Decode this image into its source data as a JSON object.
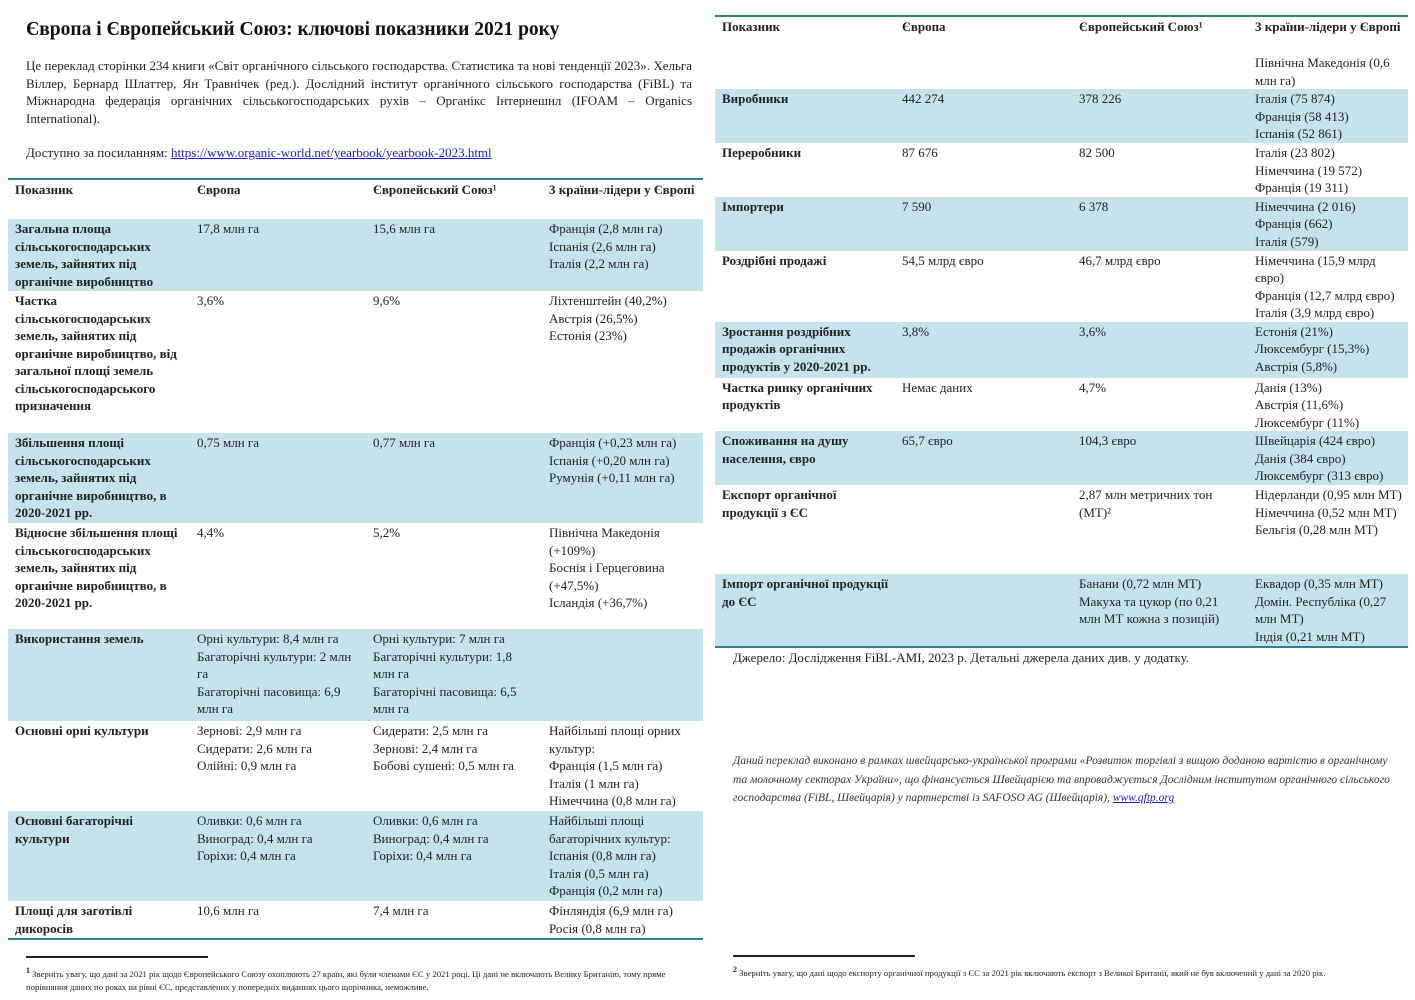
{
  "title": "Європа і Європейський Союз: ключові показники 2021 року",
  "intro": "Це переклад сторінки 234 книги «Світ органічного сільського господарства. Статистика та нові тенденції 2023». Хельга Віллер, Бернард Шлаттер, Ян Травнічек (ред.). Дослідний інститут органічного сільського господарства (FiBL) та Міжнародна федерація органічних сільськогосподарських рухів – Органікс Інтернешнл (IFOAM – Organics International).",
  "available_label": "Доступно за посиланням:",
  "available_link": "https://www.organic-world.net/yearbook/yearbook-2023.html",
  "headers": [
    "Показник",
    "Європа",
    "Європейський Союз¹",
    "3 країни-лідери у Європі"
  ],
  "left_rows": [
    {
      "c": [
        [
          "Загальна площа сільськогосподарських земель, зайнятих під органічне виробництво"
        ],
        [
          "17,8 млн га"
        ],
        [
          "15,6 млн га"
        ],
        [
          "Франція (2,8 млн га)",
          "Іспанія (2,6 млн га)",
          "Італія (2,2 млн га)"
        ]
      ]
    },
    {
      "c": [
        [
          "Частка сільськогосподарських земель, зайнятих під органічне виробництво, від загальної площі земель сільськогосподарського призначення"
        ],
        [
          "3,6%"
        ],
        [
          "9,6%"
        ],
        [
          "Ліхтенштейн (40,2%)",
          "Австрія (26,5%)",
          "Естонія (23%)"
        ]
      ]
    },
    {
      "c": [
        [
          "Збільшення площі сільськогосподарських земель, зайнятих під органічне виробництво, в 2020-2021 рр."
        ],
        [
          "0,75 млн га"
        ],
        [
          "0,77 млн га"
        ],
        [
          "Франція (+0,23 млн га)",
          "Іспанія (+0,20 млн га)",
          "Румунія (+0,11 млн га)"
        ]
      ]
    },
    {
      "c": [
        [
          "Відносне збільшення площі сільськогосподарських земель, зайнятих під органічне виробництво, в 2020-2021 рр."
        ],
        [
          "4,4%"
        ],
        [
          "5,2%"
        ],
        [
          "Північна Македонія (+109%)",
          "Боснія і Герцеговина (+47,5%)",
          "Ісландія (+36,7%)"
        ]
      ]
    },
    {
      "c": [
        [
          "Використання земель"
        ],
        [
          "Орні культури: 8,4 млн га",
          "Багаторічні культури: 2 млн га",
          "Багаторічні пасовища: 6,9 млн га"
        ],
        [
          "Орні культури: 7 млн га",
          "Багаторічні культури: 1,8 млн га",
          "Багаторічні пасовища: 6,5 млн га"
        ],
        [
          ""
        ]
      ]
    },
    {
      "c": [
        [
          "Основні орні культури"
        ],
        [
          "Зернові: 2,9 млн га",
          "Сидерати: 2,6 млн га",
          "Олійні: 0,9 млн га"
        ],
        [
          "Сидерати: 2,5 млн га",
          "Зернові: 2,4 млн га",
          "Бобові сушені: 0,5 млн га"
        ],
        [
          "Найбільші площі орних культур:",
          "Франція (1,5 млн га)",
          "Італія (1 млн га)",
          "Німеччина (0,8 млн га)"
        ]
      ]
    },
    {
      "c": [
        [
          "Основні багаторічні культури"
        ],
        [
          "Оливки: 0,6 млн га",
          "Виноград: 0,4 млн га",
          "Горіхи: 0,4 млн га"
        ],
        [
          "Оливки: 0,6 млн га",
          "Виноград: 0,4 млн га",
          "Горіхи: 0,4 млн га"
        ],
        [
          "Найбільші площі багаторічних культур:",
          "Іспанія (0,8 млн га)",
          "Італія (0,5 млн га)",
          "Франція (0,2 млн га)"
        ]
      ]
    },
    {
      "c": [
        [
          "Площі для заготівлі дикоросів"
        ],
        [
          "10,6 млн га"
        ],
        [
          "7,4 млн га"
        ],
        [
          "Фінляндія (6,9 млн га)",
          "Росія (0,8 млн га)"
        ]
      ]
    }
  ],
  "right_rows": [
    {
      "c": [
        [
          ""
        ],
        [
          ""
        ],
        [
          ""
        ],
        [
          "Північна Македонія (0,6 млн га)"
        ]
      ]
    },
    {
      "c": [
        [
          "Виробники"
        ],
        [
          "442 274"
        ],
        [
          "378 226"
        ],
        [
          "Італія (75 874)",
          "Франція (58 413)",
          "Іспанія (52 861)"
        ]
      ]
    },
    {
      "c": [
        [
          "Переробники"
        ],
        [
          "87 676"
        ],
        [
          "82 500"
        ],
        [
          "Італія (23 802)",
          "Німеччина (19 572)",
          "Франція (19 311)"
        ]
      ]
    },
    {
      "c": [
        [
          "Імпортери"
        ],
        [
          "7 590"
        ],
        [
          "6 378"
        ],
        [
          "Німеччина (2 016)",
          "Франція (662)",
          "Італія (579)"
        ]
      ]
    },
    {
      "c": [
        [
          "Роздрібні продажі"
        ],
        [
          "54,5 млрд євро"
        ],
        [
          "46,7 млрд євро"
        ],
        [
          "Німеччина (15,9 млрд євро)",
          "Франція (12,7 млрд євро)",
          "Італія (3,9 млрд євро)"
        ]
      ]
    },
    {
      "c": [
        [
          "Зростання роздрібних продажів органічних продуктів у 2020-2021 рр."
        ],
        [
          "3,8%"
        ],
        [
          "3,6%"
        ],
        [
          "Естонія (21%)",
          "Люксембург (15,3%)",
          "Австрія (5,8%)"
        ]
      ]
    },
    {
      "c": [
        [
          "Частка ринку органічних продуктів"
        ],
        [
          "Немає даних"
        ],
        [
          "4,7%"
        ],
        [
          "Данія (13%)",
          "Австрія (11,6%)",
          "Люксембург (11%)"
        ]
      ]
    },
    {
      "c": [
        [
          "Споживання на душу населення, євро"
        ],
        [
          "65,7 євро"
        ],
        [
          "104,3 євро"
        ],
        [
          "Швейцарія (424 євро)",
          "Данія (384 євро)",
          "Люксембург (313 євро)"
        ]
      ]
    },
    {
      "c": [
        [
          "Експорт органічної продукції з ЄС"
        ],
        [
          ""
        ],
        [
          "2,87 млн метричних тон (МТ)²"
        ],
        [
          "Нідерланди (0,95 млн МТ)",
          "Німеччина (0,52 млн МТ)",
          "Бельгія (0,28 млн МТ)"
        ]
      ]
    },
    {
      "c": [
        [
          "Імпорт органічної продукції до ЄС"
        ],
        [
          ""
        ],
        [
          "Банани (0,72 млн МТ)",
          "Макуха та цукор (по 0,21 млн МТ кожна з позицій)"
        ],
        [
          "Еквадор (0,35 млн МТ)",
          "Домін. Республіка (0,27 млн МТ)",
          "Індія (0,21 млн МТ)"
        ]
      ]
    }
  ],
  "source": "Джерело: Дослідження FiBL-AMI, 2023 р. Детальні джерела даних див. у додатку.",
  "note_text": "Даний переклад виконано в рамках швейцарсько-української програми «Розвиток торгівлі з вищою доданою вартістю в органічному та молочному секторах України», що фінансується Швейцарією та впроваджується Дослідним інститутом органічного сільського господарства (FiBL, Швейцарія) у партнерстві із SAFOSO AG (Швейцарія),",
  "note_link": "www.qftp.org",
  "footnote1_mark": "1",
  "footnote1": "Зверніть увагу, що дані за 2021 рік щодо Європейського Союзу охоплюють 27 країн, які були членами ЄС у 2021 році. Ці дані не включають Велику Британію, тому пряме порівняння даних по роках на рівні ЄС, представлених у попередніх виданнях цього щорічника, неможливе.",
  "footnote2_mark": "2",
  "footnote2": "Зверніть увагу, що дані щодо експорту органічної продукції з ЄС за 2021 рік включають експорт з Великої Британії, який не був включений у дані за 2020 рік."
}
